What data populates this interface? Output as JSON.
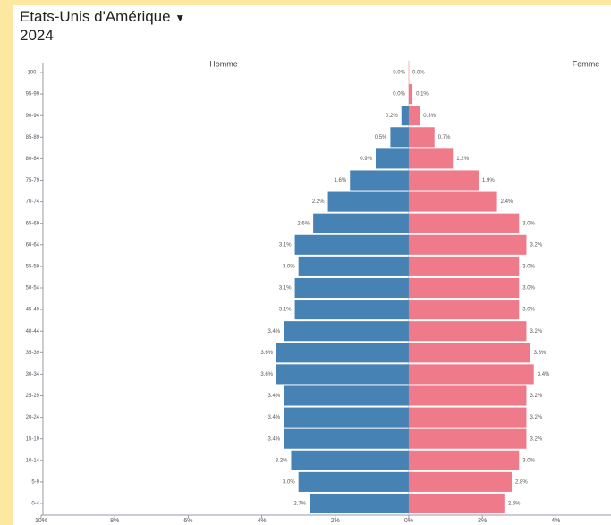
{
  "chart_data": {
    "type": "population_pyramid",
    "title": "Etats-Unis d'Amérique",
    "subtitle": "2024",
    "categories": [
      "100+",
      "95-99",
      "90-94",
      "85-89",
      "80-84",
      "75-79",
      "70-74",
      "65-69",
      "60-64",
      "55-59",
      "50-54",
      "45-49",
      "40-44",
      "35-39",
      "30-34",
      "25-29",
      "20-24",
      "15-19",
      "10-14",
      "5-9",
      "0-4"
    ],
    "series": [
      {
        "name": "Homme",
        "color": "#4682b4",
        "side": "left",
        "values": [
          0.0,
          0.0,
          0.2,
          0.5,
          0.9,
          1.6,
          2.2,
          2.6,
          3.1,
          3.0,
          3.1,
          3.1,
          3.4,
          3.6,
          3.6,
          3.4,
          3.4,
          3.4,
          3.2,
          3.0,
          2.7
        ],
        "value_labels": [
          "0.0%",
          "0.0%",
          "0.2%",
          "0.5%",
          "0.9%",
          "1.6%",
          "2.2%",
          "2.6%",
          "3.1%",
          "3.0%",
          "3.1%",
          "3.1%",
          "3.4%",
          "3.6%",
          "3.6%",
          "3.4%",
          "3.4%",
          "3.4%",
          "3.2%",
          "3.0%",
          "2.7%"
        ]
      },
      {
        "name": "Femme",
        "color": "#ef7b8a",
        "side": "right",
        "values": [
          0.0,
          0.1,
          0.3,
          0.7,
          1.2,
          1.9,
          2.4,
          3.0,
          3.2,
          3.0,
          3.0,
          3.0,
          3.2,
          3.3,
          3.4,
          3.2,
          3.2,
          3.2,
          3.0,
          2.8,
          2.6
        ],
        "value_labels": [
          "0.0%",
          "0.1%",
          "0.3%",
          "0.7%",
          "1.2%",
          "1.9%",
          "2.4%",
          "3.0%",
          "3.2%",
          "3.0%",
          "3.0%",
          "3.0%",
          "3.2%",
          "3.3%",
          "3.4%",
          "3.2%",
          "3.2%",
          "3.2%",
          "3.0%",
          "2.8%",
          "2.6%"
        ]
      }
    ],
    "xlim": [
      -10,
      5.5
    ],
    "xticks": [
      {
        "value": -10,
        "label": "10%"
      },
      {
        "value": -8,
        "label": "8%"
      },
      {
        "value": -6,
        "label": "6%"
      },
      {
        "value": -4,
        "label": "4%"
      },
      {
        "value": -2,
        "label": "2%"
      },
      {
        "value": 0,
        "label": "0%"
      },
      {
        "value": 2,
        "label": "2%"
      },
      {
        "value": 4,
        "label": "4%"
      }
    ]
  }
}
